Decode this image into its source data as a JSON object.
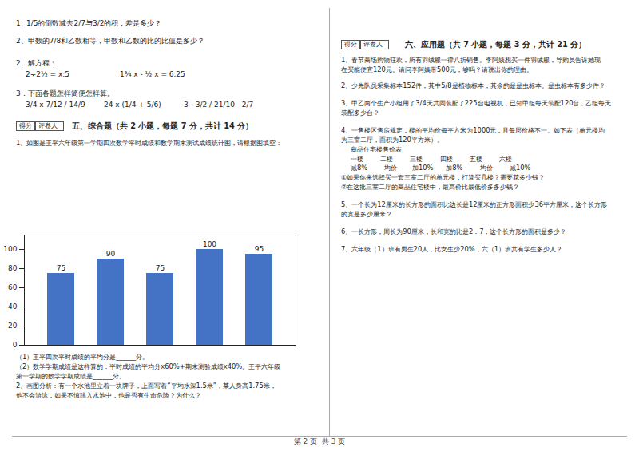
{
  "chart_data": {
    "type": "bar",
    "categories": [
      null,
      null,
      null,
      null,
      null
    ],
    "values": [
      75,
      90,
      75,
      100,
      95
    ],
    "color": "#4472C4",
    "ylim": [
      0,
      115
    ],
    "yticks": [
      0,
      20,
      40,
      60,
      80,
      100
    ],
    "data_labels": true,
    "tick_labels": "y",
    "grid": false,
    "annotations": [
      [
        "1、",
        "1/5的倒数减去2/7与3/2的积，差是多少？"
      ],
      [
        "2、甲数的7/8和乙数相等，甲数和乙数的比的比值是多少？"
      ],
      [
        "2．解方程："
      ],
      [
        "2÷2½ = x:5",
        "1¾ x - ½ x = 6.25"
      ],
      [
        "3．下面各题怎样简便怎样算。"
      ],
      [
        "3/4 x 7/12 / 14/9",
        "24 x (1/4 + 5/6)",
        "3 - 3/2 / 21/10 - 2/7"
      ],
      [
        "得分",
        "评卷人",
        "五、综合题（共 2 小题，每题 7 分，共计 14 分）"
      ],
      [
        "1、如图是王平六年级第一学期四次数学平时成绩和数学期末测试成绩统计图，请根据图填空："
      ],
      [
        "（1）王平四次平时成绩的平均分是______分。"
      ],
      [
        "（2）数学学期成绩是这样算的：平时成绩的平均分x60%+期末测验成绩x40%。王平六年级"
      ],
      [
        "第一学期的数学学期成绩是______分。"
      ],
      [
        "2、画图分析：有一个水池里立着一块牌子，上面写着“平均水深1.5米”，某人身高1.75米，"
      ],
      [
        "他不会游泳，如果不慎跳入水池中，他是否有生命危险？为什么？"
      ],
      [
        "得分",
        "评卷人",
        "六、应用题（共 7 小题，每题 3 分，共计 21 分）"
      ],
      [
        "1、春节商场购物狂欢，所有羽绒服一律八折销售。李阿姨想买一件羽绒服，导购员告诉她现"
      ],
      [
        "在买能便宜120元。请问李阿姨带500元，够吗？请说出你的理由。"
      ],
      [
        "2、少先队员采集标本152件，其中5/8是植物标本，其余的是是虫标本。是虫标本有多少件？"
      ],
      [
        "3、甲乙两个生产小组用了3/4天共同装配了225台电视机，已知甲组每天装配120台，乙组每天"
      ],
      [
        "装配多少台？"
      ],
      [
        "4、一售楼区售房规定，楼的平均价每平方米为1000元，且每层价格不一。如下表（单元楼均"
      ],
      [
        "为三室二厅，面积为120平方米）。"
      ],
      [
        "商品住宅楼售价表"
      ],
      [
        "一楼        二楼        三楼        四楼        五楼        六楼"
      ],
      [
        "减8%        均价       加10%      加8%        均价        减10%"
      ],
      [
        "①如果你来选择买一套三室二厅的单元楼，打算买几楼？需要花多少钱？"
      ],
      [
        "②在这批三室二厅的商品住宅楼中，最高价比最低价多多少钱？"
      ],
      [
        "5、一个长为12厘米的长方形的面积比边长是12厘米的正方形面积少36平方厘米，这个长方形"
      ],
      [
        "的宽是多少厘米？"
      ],
      [
        "6、一长方形，周长为90厘米，长和宽的比是2：7，这个长方形的面积是多少？"
      ],
      [
        "7、六年级（1）班有男生20人，比女生少20%，六（1）班共有学生多少人？"
      ],
      [
        "第 2 页  共 3 页"
      ]
    ]
  }
}
